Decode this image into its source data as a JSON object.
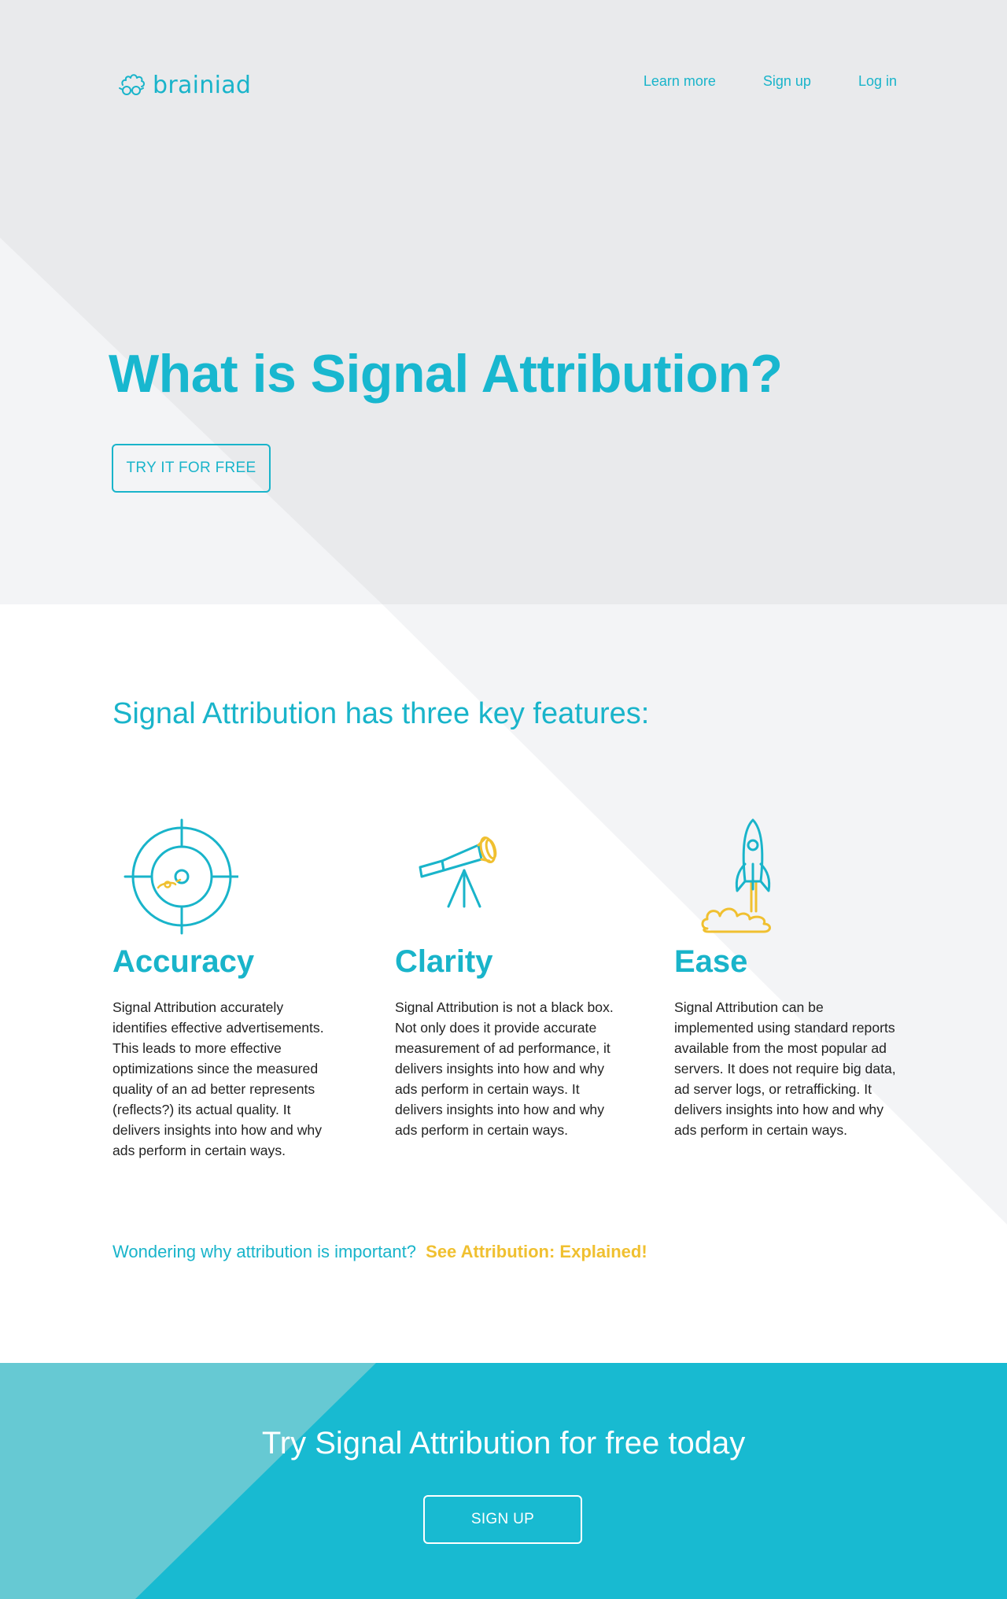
{
  "brand": {
    "name": "brainiad",
    "logo_icon": "brain-glasses-icon",
    "accent_color": "#19b4ca",
    "highlight_color": "#f0c030"
  },
  "nav": {
    "links": [
      "Learn more",
      "Sign up",
      "Log in"
    ]
  },
  "hero": {
    "title": "What is Signal Attribution?",
    "cta_label": "TRY IT FOR FREE"
  },
  "features": {
    "heading": "Signal Attribution has three key features:",
    "items": [
      {
        "icon": "target-icon",
        "title": "Accuracy",
        "text": "Signal Attribution accurately identifies effective advertisements. This leads to more effective optimizations since the measured quality of an ad better represents (reflects?) its actual quality. It delivers insights into how and why ads perform in certain ways."
      },
      {
        "icon": "telescope-icon",
        "title": "Clarity",
        "text": "Signal Attribution is not a black box. Not only does it provide accurate measurement of ad performance, it delivers insights into how and why ads perform in certain ways. It delivers insights into how and why ads perform in certain ways."
      },
      {
        "icon": "rocket-icon",
        "title": "Ease",
        "text": "Signal Attribution can be implemented using standard reports available from the most popular ad servers. It does not require big data, ad server logs, or retrafficking. It delivers insights into how and why ads perform in certain ways."
      }
    ],
    "wonder_text": "Wondering why attribution is important?",
    "wonder_link": "See Attribution: Explained!"
  },
  "footer_cta": {
    "title": "Try Signal Attribution for free today",
    "button_label": "SIGN UP"
  }
}
